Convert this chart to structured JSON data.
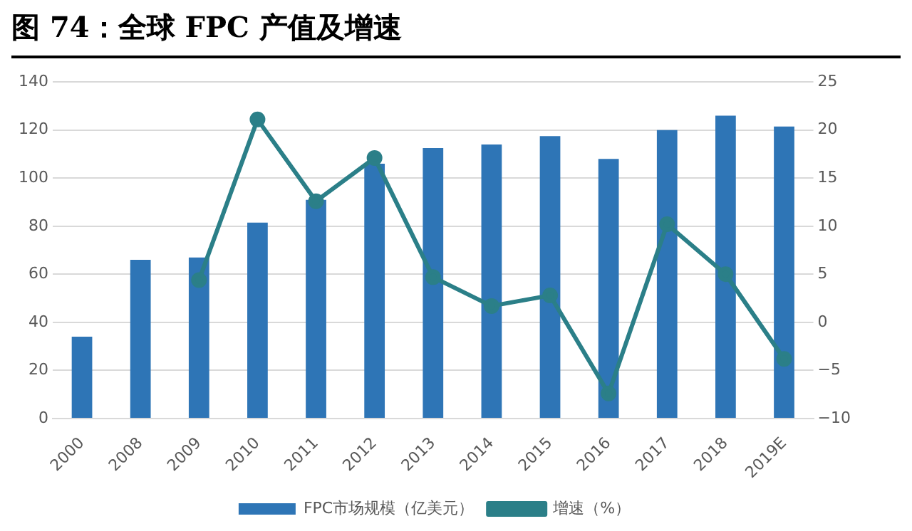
{
  "chart_data": {
    "type": "bar",
    "title": "图 74：全球 FPC 产值及增速",
    "categories": [
      "2000",
      "2008",
      "2009",
      "2010",
      "2011",
      "2012",
      "2013",
      "2014",
      "2015",
      "2016",
      "2017",
      "2018",
      "2019E"
    ],
    "series": [
      {
        "name": "FPC市场规模（亿美元）",
        "color": "#2e75b6",
        "values": [
          34,
          66,
          67,
          81.5,
          91,
          106,
          112.5,
          114,
          117.5,
          108,
          120,
          126,
          121.5
        ]
      },
      {
        "name": "增速（%）",
        "type": "line",
        "axis": "y2",
        "color": "#2b7f88",
        "marker": "circle",
        "values": [
          null,
          null,
          4.4,
          21.1,
          12.6,
          17.1,
          4.7,
          1.7,
          2.8,
          -7.4,
          10.2,
          5.0,
          -3.8
        ]
      }
    ],
    "ylim": [
      0,
      140
    ],
    "yticks": [
      0,
      20,
      40,
      60,
      80,
      100,
      120,
      140
    ],
    "y2lim": [
      -10,
      25
    ],
    "y2ticks": [
      -10,
      -5,
      0,
      5,
      10,
      15,
      20,
      25
    ],
    "grid": "y",
    "legend": "bottom"
  }
}
